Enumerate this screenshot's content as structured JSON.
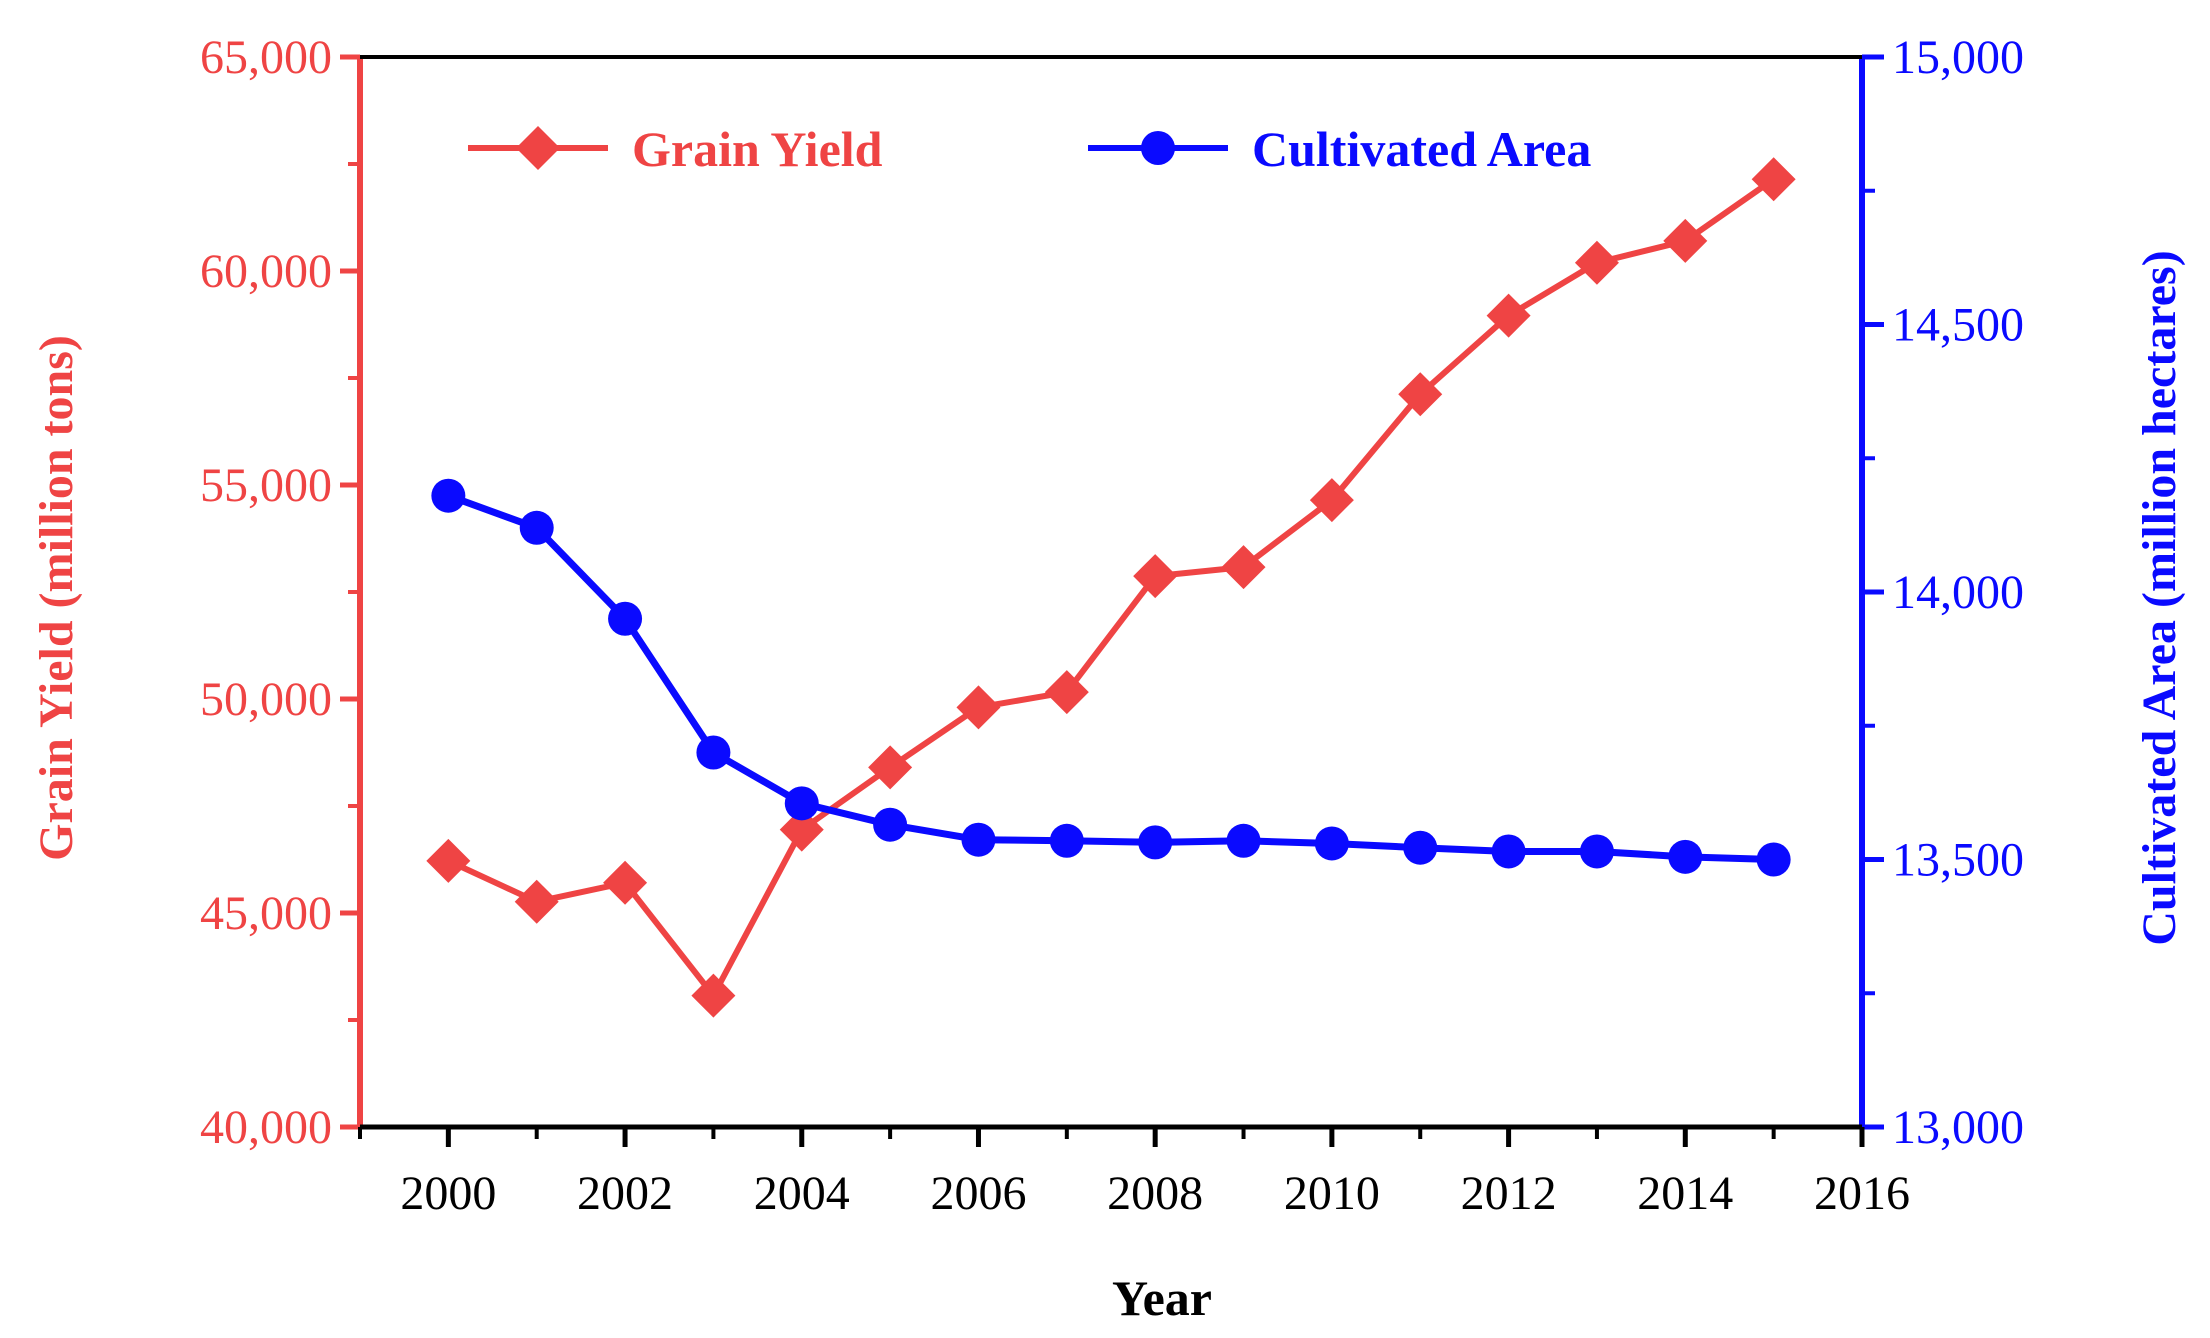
{
  "chart_data": {
    "type": "line",
    "title": "",
    "xlabel": "Year",
    "ylabel_left": "Grain Yield (million tons)",
    "ylabel_right": "Cultivated Area (million hectares)",
    "x": [
      2000,
      2001,
      2002,
      2003,
      2004,
      2005,
      2006,
      2007,
      2008,
      2009,
      2010,
      2011,
      2012,
      2013,
      2014,
      2015
    ],
    "xlim": [
      1999,
      2016
    ],
    "x_ticks": [
      2000,
      2002,
      2004,
      2006,
      2008,
      2010,
      2012,
      2014,
      2016
    ],
    "x_tick_labels": [
      "2000",
      "2002",
      "2004",
      "2006",
      "2008",
      "2010",
      "2012",
      "2014",
      "2016"
    ],
    "ylim_left": [
      40000,
      65000
    ],
    "y_ticks_left": [
      40000,
      45000,
      50000,
      55000,
      60000,
      65000
    ],
    "y_tick_labels_left": [
      "40,000",
      "45,000",
      "50,000",
      "55,000",
      "60,000",
      "65,000"
    ],
    "ylim_right": [
      13000,
      15000
    ],
    "y_ticks_right": [
      13000,
      13500,
      14000,
      14500,
      15000
    ],
    "y_tick_labels_right": [
      "13,000",
      "13,500",
      "14,000",
      "14,500",
      "15,000"
    ],
    "grid": false,
    "legend_position": "top",
    "series": [
      {
        "name": "Grain Yield",
        "axis": "left",
        "color": "#ef4444",
        "marker": "diamond",
        "values": [
          46218,
          45264,
          45706,
          43070,
          46947,
          48402,
          49804,
          50160,
          52871,
          53082,
          54648,
          57121,
          58958,
          60194,
          60703,
          62144
        ]
      },
      {
        "name": "Cultivated Area",
        "axis": "right",
        "color": "#0a0aff",
        "marker": "circle",
        "values": [
          14180,
          14120,
          13950,
          13700,
          13605,
          13565,
          13537,
          13535,
          13532,
          13535,
          13530,
          13522,
          13515,
          13515,
          13505,
          13500
        ]
      }
    ]
  }
}
